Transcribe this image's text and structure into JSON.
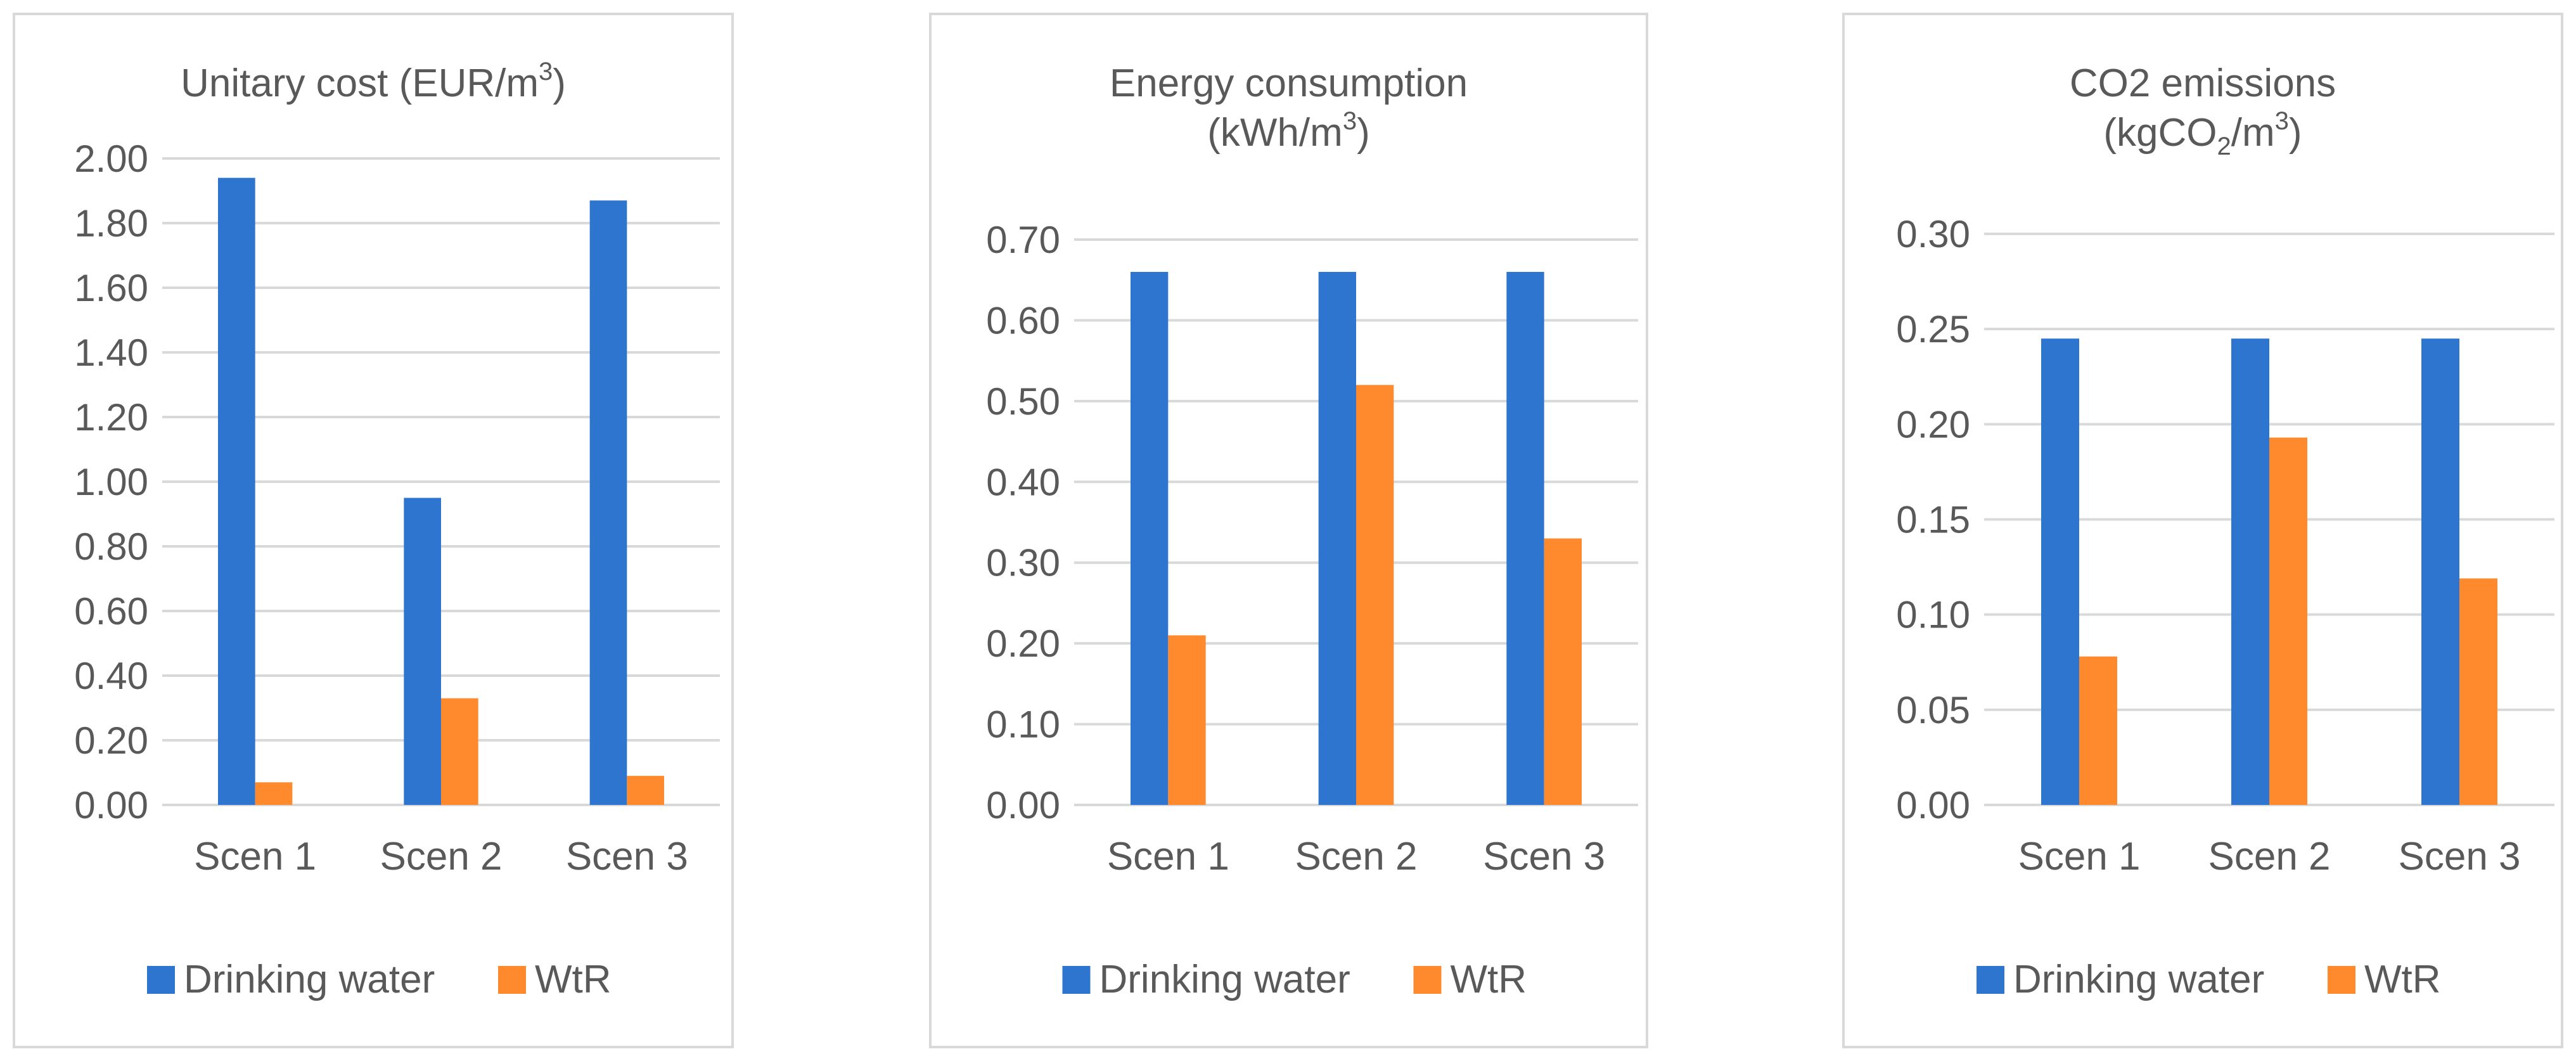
{
  "colors": {
    "drinking_water": "#2E75D0",
    "wtr": "#FF8A2E"
  },
  "chart_data": [
    {
      "type": "bar",
      "title": "Unitary  cost (EUR/m3)",
      "title_lines": [
        [
          {
            "t": "Unitary  cost (EUR/m"
          },
          {
            "t": "3",
            "sup": true
          },
          {
            "t": ")"
          }
        ]
      ],
      "categories": [
        "Scen 1",
        "Scen 2",
        "Scen 3"
      ],
      "series": [
        {
          "name": "Drinking water",
          "values": [
            1.94,
            0.95,
            1.87
          ]
        },
        {
          "name": "WtR",
          "values": [
            0.07,
            0.33,
            0.09
          ]
        }
      ],
      "ylim": [
        0,
        2.0
      ],
      "yticks": [
        "0.00",
        "0.20",
        "0.40",
        "0.60",
        "0.80",
        "1.00",
        "1.20",
        "1.40",
        "1.60",
        "1.80",
        "2.00"
      ],
      "ystep": 0.2,
      "xlabel": "",
      "ylabel": "",
      "legend": "bottom",
      "grid": true
    },
    {
      "type": "bar",
      "title": "Energy consumption (kWh/m3)",
      "title_lines": [
        [
          {
            "t": "Energy  consumption"
          }
        ],
        [
          {
            "t": "(kWh/m"
          },
          {
            "t": "3",
            "sup": true
          },
          {
            "t": ")"
          }
        ]
      ],
      "categories": [
        "Scen 1",
        "Scen 2",
        "Scen 3"
      ],
      "series": [
        {
          "name": "Drinking water",
          "values": [
            0.66,
            0.66,
            0.66
          ]
        },
        {
          "name": "WtR",
          "values": [
            0.21,
            0.52,
            0.33
          ]
        }
      ],
      "ylim": [
        0,
        0.7
      ],
      "yticks": [
        "0.00",
        "0.10",
        "0.20",
        "0.30",
        "0.40",
        "0.50",
        "0.60",
        "0.70"
      ],
      "ystep": 0.1,
      "xlabel": "",
      "ylabel": "",
      "legend": "bottom",
      "grid": true
    },
    {
      "type": "bar",
      "title": "CO2 emissions (kgCO2/m3)",
      "title_lines": [
        [
          {
            "t": "CO2 emissions"
          }
        ],
        [
          {
            "t": "(kgCO"
          },
          {
            "t": "2",
            "sub": true
          },
          {
            "t": "/m"
          },
          {
            "t": "3",
            "sup": true
          },
          {
            "t": ")"
          }
        ]
      ],
      "categories": [
        "Scen 1",
        "Scen 2",
        "Scen 3"
      ],
      "series": [
        {
          "name": "Drinking water",
          "values": [
            0.245,
            0.245,
            0.245
          ]
        },
        {
          "name": "WtR",
          "values": [
            0.078,
            0.193,
            0.119
          ]
        }
      ],
      "ylim": [
        0,
        0.3
      ],
      "yticks": [
        "0.00",
        "0.05",
        "0.10",
        "0.15",
        "0.20",
        "0.25",
        "0.30"
      ],
      "ystep": 0.05,
      "xlabel": "",
      "ylabel": "",
      "legend": "bottom",
      "grid": true
    }
  ]
}
